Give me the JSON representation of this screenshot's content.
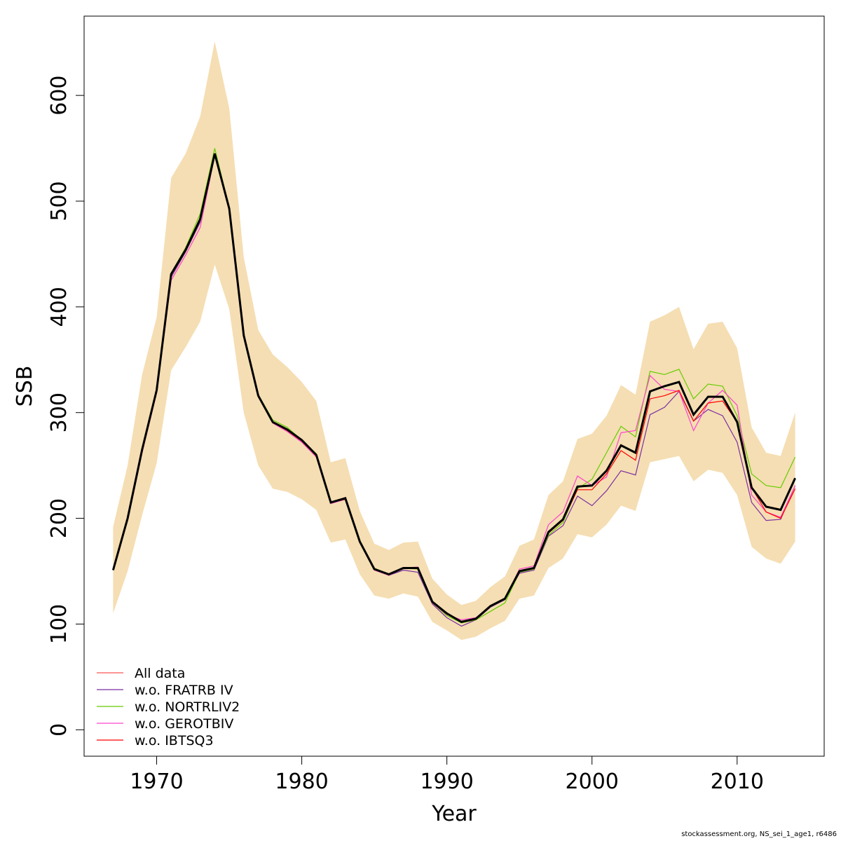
{
  "chart_data": {
    "type": "line",
    "xlabel": "Year",
    "ylabel": "SSB",
    "xlim": [
      1965,
      2016
    ],
    "ylim": [
      -25,
      675
    ],
    "x_ticks": [
      1970,
      1980,
      1990,
      2000,
      2010
    ],
    "y_ticks": [
      0,
      100,
      200,
      300,
      400,
      500,
      600
    ],
    "legend_position": "bottom-left",
    "grid": false,
    "x": [
      1967,
      1968,
      1969,
      1970,
      1971,
      1972,
      1973,
      1974,
      1975,
      1976,
      1977,
      1978,
      1979,
      1980,
      1981,
      1982,
      1983,
      1984,
      1985,
      1986,
      1987,
      1988,
      1989,
      1990,
      1991,
      1992,
      1993,
      1994,
      1995,
      1996,
      1997,
      1998,
      1999,
      2000,
      2001,
      2002,
      2003,
      2004,
      2005,
      2006,
      2007,
      2008,
      2009,
      2010,
      2011,
      2012,
      2013,
      2014
    ],
    "ssb_estimate": {
      "color": "#000000",
      "values": [
        151,
        200,
        265,
        321,
        431,
        454,
        483,
        545,
        493,
        373,
        316,
        291,
        284,
        274,
        260,
        215,
        219,
        178,
        152,
        147,
        153,
        153,
        121,
        110,
        102,
        105,
        117,
        124,
        150,
        153,
        187,
        199,
        230,
        231,
        245,
        269,
        262,
        320,
        325,
        329,
        298,
        315,
        315,
        291,
        229,
        211,
        208,
        238
      ]
    },
    "ci_band": {
      "color": "#f5deb3",
      "lower": [
        110,
        150,
        203,
        252,
        340,
        362,
        386,
        440,
        398,
        300,
        250,
        228,
        225,
        218,
        208,
        177,
        180,
        147,
        127,
        124,
        129,
        126,
        102,
        94,
        85,
        88,
        96,
        103,
        124,
        127,
        153,
        162,
        185,
        182,
        194,
        212,
        207,
        253,
        256,
        259,
        235,
        246,
        243,
        222,
        173,
        162,
        157,
        178
      ],
      "upper": [
        192,
        250,
        336,
        390,
        522,
        545,
        580,
        651,
        588,
        447,
        378,
        355,
        343,
        329,
        311,
        253,
        257,
        207,
        176,
        170,
        177,
        178,
        143,
        128,
        118,
        122,
        135,
        145,
        174,
        180,
        222,
        235,
        275,
        280,
        297,
        326,
        317,
        386,
        392,
        400,
        360,
        384,
        386,
        361,
        286,
        262,
        259,
        300
      ]
    },
    "series": [
      {
        "name": "All data",
        "color": "#ff5555",
        "values": [
          151,
          200,
          265,
          321,
          431,
          454,
          483,
          545,
          493,
          373,
          316,
          291,
          284,
          274,
          260,
          215,
          219,
          178,
          152,
          147,
          153,
          153,
          121,
          110,
          102,
          105,
          117,
          124,
          150,
          153,
          187,
          199,
          230,
          231,
          245,
          269,
          262,
          320,
          325,
          329,
          298,
          315,
          315,
          291,
          229,
          211,
          208,
          238
        ]
      },
      {
        "name": "w.o. FRATRB IV",
        "color": "#7b2fa0",
        "values": [
          151,
          200,
          265,
          321,
          428,
          452,
          480,
          544,
          492,
          373,
          315,
          291,
          283,
          273,
          259,
          214,
          218,
          178,
          152,
          146,
          151,
          149,
          119,
          106,
          98,
          104,
          116,
          123,
          148,
          151,
          183,
          193,
          221,
          212,
          226,
          245,
          241,
          298,
          305,
          320,
          292,
          303,
          297,
          272,
          215,
          198,
          199,
          231
        ]
      },
      {
        "name": "w.o. NORTRLIV2",
        "color": "#66cc00",
        "values": [
          151,
          201,
          266,
          322,
          432,
          456,
          488,
          550,
          494,
          372,
          317,
          293,
          286,
          274,
          261,
          215,
          219,
          178,
          153,
          147,
          153,
          152,
          120,
          108,
          101,
          104,
          112,
          120,
          149,
          152,
          184,
          196,
          228,
          237,
          262,
          287,
          277,
          339,
          336,
          341,
          313,
          327,
          325,
          297,
          242,
          231,
          229,
          258
        ]
      },
      {
        "name": "w.o. GEROTBIV",
        "color": "#ff44cc",
        "values": [
          151,
          198,
          262,
          319,
          425,
          449,
          475,
          543,
          491,
          371,
          315,
          290,
          282,
          272,
          258,
          214,
          218,
          177,
          151,
          146,
          153,
          154,
          120,
          109,
          104,
          106,
          117,
          124,
          152,
          155,
          194,
          206,
          240,
          231,
          239,
          281,
          283,
          335,
          322,
          320,
          283,
          309,
          321,
          307,
          222,
          206,
          201,
          231
        ]
      },
      {
        "name": "w.o. IBTSQ3",
        "color": "#ff0000",
        "values": [
          151,
          200,
          265,
          321,
          430,
          453,
          482,
          544,
          492,
          372,
          316,
          291,
          283,
          273,
          259,
          215,
          218,
          177,
          152,
          147,
          153,
          153,
          121,
          110,
          102,
          105,
          117,
          124,
          150,
          153,
          186,
          198,
          227,
          227,
          242,
          264,
          255,
          313,
          316,
          321,
          292,
          309,
          311,
          291,
          229,
          206,
          200,
          228
        ]
      }
    ]
  },
  "footer": "stockassessment.org, NS_sei_1_age1, r6486"
}
